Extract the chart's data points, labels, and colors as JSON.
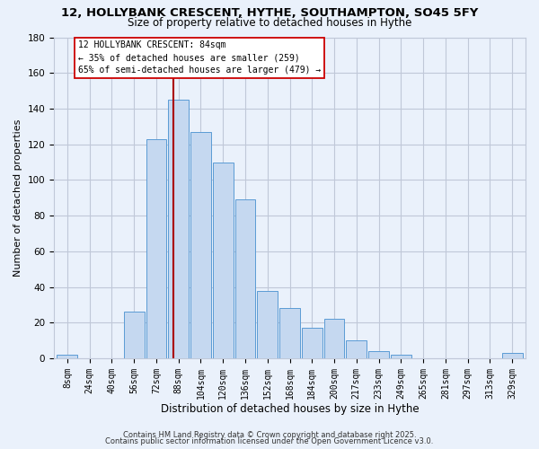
{
  "title": "12, HOLLYBANK CRESCENT, HYTHE, SOUTHAMPTON, SO45 5FY",
  "subtitle": "Size of property relative to detached houses in Hythe",
  "xlabel": "Distribution of detached houses by size in Hythe",
  "ylabel": "Number of detached properties",
  "bar_labels": [
    "8sqm",
    "24sqm",
    "40sqm",
    "56sqm",
    "72sqm",
    "88sqm",
    "104sqm",
    "120sqm",
    "136sqm",
    "152sqm",
    "168sqm",
    "184sqm",
    "200sqm",
    "217sqm",
    "233sqm",
    "249sqm",
    "265sqm",
    "281sqm",
    "297sqm",
    "313sqm",
    "329sqm"
  ],
  "bar_values": [
    2,
    0,
    0,
    26,
    123,
    145,
    127,
    110,
    89,
    38,
    28,
    17,
    22,
    10,
    4,
    2,
    0,
    0,
    0,
    0,
    3
  ],
  "bar_color": "#c5d8f0",
  "bar_edge_color": "#5b9bd5",
  "grid_color": "#c0c8d8",
  "background_color": "#eaf1fb",
  "vline_color": "#aa0000",
  "annotation_box": {
    "line1": "12 HOLLYBANK CRESCENT: 84sqm",
    "line2": "← 35% of detached houses are smaller (259)",
    "line3": "65% of semi-detached houses are larger (479) →"
  },
  "ylim": [
    0,
    180
  ],
  "yticks": [
    0,
    20,
    40,
    60,
    80,
    100,
    120,
    140,
    160,
    180
  ],
  "footer_line1": "Contains HM Land Registry data © Crown copyright and database right 2025.",
  "footer_line2": "Contains public sector information licensed under the Open Government Licence v3.0."
}
